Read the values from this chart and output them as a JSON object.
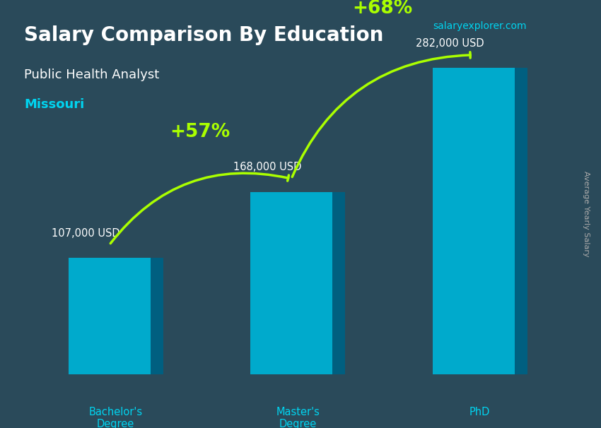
{
  "title": "Salary Comparison By Education",
  "subtitle": "Public Health Analyst",
  "location": "Missouri",
  "ylabel": "Average Yearly Salary",
  "categories": [
    "Bachelor's\nDegree",
    "Master's\nDegree",
    "PhD"
  ],
  "values": [
    107000,
    168000,
    282000
  ],
  "value_labels": [
    "107,000 USD",
    "168,000 USD",
    "282,000 USD"
  ],
  "bar_color_top": "#00d4f0",
  "bar_color_mid": "#00aacc",
  "bar_color_bottom": "#007fa8",
  "bar_color_side": "#005f80",
  "pct_labels": [
    "+57%",
    "+68%"
  ],
  "pct_color": "#aaff00",
  "background_color": "#2a4a5a",
  "title_color": "#ffffff",
  "subtitle_color": "#ffffff",
  "location_color": "#00d4f0",
  "value_label_color": "#ffffff",
  "tick_label_color": "#00d4f0",
  "watermark": "salaryexplorer.com",
  "watermark_color": "#00d4f0",
  "ylabel_color": "#aaaaaa",
  "ylim": [
    0,
    320000
  ],
  "bar_width": 0.45,
  "fig_width": 8.5,
  "fig_height": 6.06
}
